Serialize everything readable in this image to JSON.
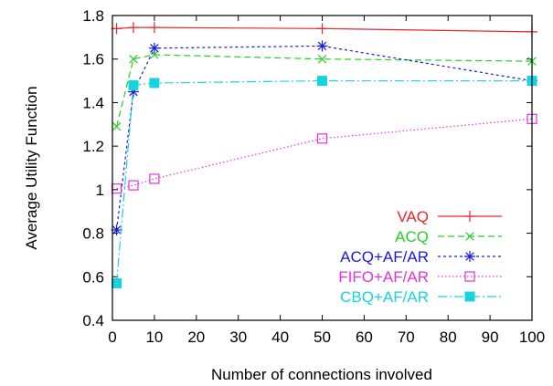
{
  "chart_data": {
    "type": "line",
    "title": "",
    "xlabel": "Number of connections involved",
    "ylabel": "Average Utility Function",
    "xlim": [
      0,
      100
    ],
    "ylim": [
      0.4,
      1.8
    ],
    "xticks": [
      "0",
      "10",
      "20",
      "30",
      "40",
      "50",
      "60",
      "70",
      "80",
      "90",
      "100"
    ],
    "yticks": [
      "0.4",
      "0.6",
      "0.8",
      "1",
      "1.2",
      "1.4",
      "1.6",
      "1.8"
    ],
    "legend_position": "bottom-right",
    "grid": false,
    "series": [
      {
        "name": "VAQ",
        "color": "#e8262b",
        "marker": "plus",
        "dash": "",
        "x": [
          1,
          5,
          10,
          50,
          100
        ],
        "y": [
          1.74,
          1.745,
          1.745,
          1.74,
          1.725
        ]
      },
      {
        "name": "ACQ",
        "color": "#23d123",
        "marker": "cross",
        "dash": "7,4",
        "x": [
          1,
          5,
          10,
          50,
          100
        ],
        "y": [
          1.29,
          1.6,
          1.62,
          1.6,
          1.59
        ]
      },
      {
        "name": "ACQ+AF/AR",
        "color": "#1a1adf",
        "marker": "star",
        "dash": "3,3",
        "x": [
          1,
          5,
          10,
          50,
          100
        ],
        "y": [
          0.815,
          1.45,
          1.65,
          1.66,
          1.5
        ]
      },
      {
        "name": "FIFO+AF/AR",
        "color": "#df33df",
        "marker": "open-square",
        "dash": "1.5,2.5",
        "x": [
          1,
          5,
          10,
          50,
          100
        ],
        "y": [
          1.005,
          1.02,
          1.05,
          1.235,
          1.325
        ]
      },
      {
        "name": "CBQ+AF/AR",
        "color": "#17d3df",
        "marker": "filled-square",
        "dash": "10,3,2,3",
        "x": [
          1,
          5,
          10,
          50,
          100
        ],
        "y": [
          0.57,
          1.48,
          1.49,
          1.5,
          1.5
        ]
      }
    ]
  }
}
